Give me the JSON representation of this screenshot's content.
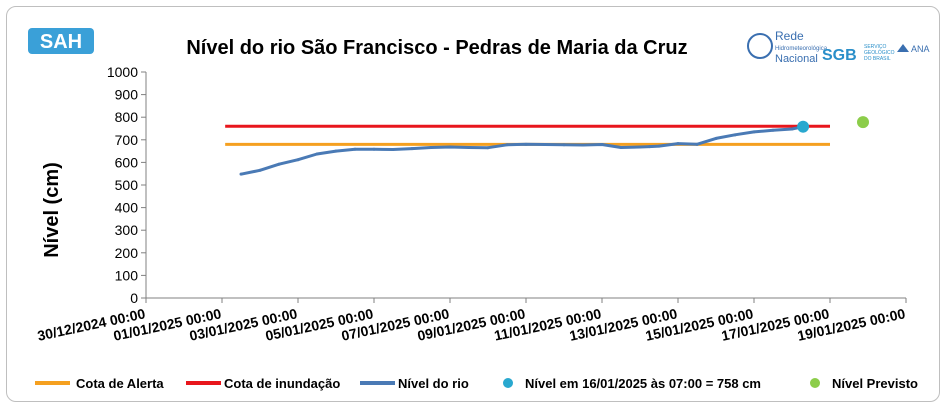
{
  "logos": {
    "left_logo_text": "SAH",
    "rede_title": "Rede",
    "rede_subtitle": "Hidrometeorológica",
    "rede_subtitle2": "Nacional",
    "sgb_text": "SGB",
    "sgb_sub1": "SERVIÇO",
    "sgb_sub2": "GEOLÓGICO",
    "sgb_sub3": "DO BRASIL",
    "ana_text": "ANA"
  },
  "colors": {
    "alerta": "#f5a020",
    "inundacao": "#e8161c",
    "nivel_rio": "#4a7ab5",
    "nivel_atual": "#29a8cf",
    "nivel_previsto": "#8ccd4a",
    "axis": "#808080"
  },
  "chart_data": {
    "type": "line",
    "title": "Nível do rio São Francisco - Pedras de Maria da Cruz",
    "ylabel": "Nível (cm)",
    "xlabel": "",
    "ylim": [
      0,
      1000
    ],
    "yticks": [
      0,
      100,
      200,
      300,
      400,
      500,
      600,
      700,
      800,
      900,
      1000
    ],
    "xlim": [
      "2024-12-30T00:00",
      "2025-01-19T00:00"
    ],
    "xtick_labels": [
      "30/12/2024 00:00",
      "01/01/2025 00:00",
      "03/01/2025 00:00",
      "05/01/2025 00:00",
      "07/01/2025 00:00",
      "09/01/2025 00:00",
      "11/01/2025 00:00",
      "13/01/2025 00:00",
      "15/01/2025 00:00",
      "17/01/2025 00:00",
      "19/01/2025 00:00"
    ],
    "grid": false,
    "legend_position": "bottom",
    "cota_alerta": {
      "name": "Cota de Alerta",
      "value": 680,
      "x_start": "2025-01-01T02:00",
      "x_end": "2025-01-17T00:00"
    },
    "cota_inundacao": {
      "name": "Cota de inundação",
      "value": 760,
      "x_start": "2025-01-01T02:00",
      "x_end": "2025-01-17T00:00"
    },
    "series": [
      {
        "name": "Nível do rio",
        "x": [
          "2025-01-01T12:00",
          "2025-01-02T00:00",
          "2025-01-02T12:00",
          "2025-01-03T00:00",
          "2025-01-03T12:00",
          "2025-01-04T00:00",
          "2025-01-04T12:00",
          "2025-01-05T00:00",
          "2025-01-05T12:00",
          "2025-01-06T00:00",
          "2025-01-06T12:00",
          "2025-01-07T00:00",
          "2025-01-07T12:00",
          "2025-01-08T00:00",
          "2025-01-08T12:00",
          "2025-01-09T00:00",
          "2025-01-09T12:00",
          "2025-01-10T00:00",
          "2025-01-10T12:00",
          "2025-01-11T00:00",
          "2025-01-11T12:00",
          "2025-01-12T00:00",
          "2025-01-12T06:00",
          "2025-01-12T12:00",
          "2025-01-13T00:00",
          "2025-01-13T12:00",
          "2025-01-14T00:00",
          "2025-01-14T12:00",
          "2025-01-15T00:00",
          "2025-01-15T12:00",
          "2025-01-16T00:00",
          "2025-01-16T07:00"
        ],
        "values": [
          548,
          565,
          592,
          612,
          637,
          650,
          658,
          658,
          657,
          661,
          666,
          668,
          666,
          665,
          678,
          680,
          679,
          678,
          677,
          679,
          666,
          668,
          670,
          672,
          683,
          680,
          706,
          722,
          735,
          742,
          748,
          758
        ]
      }
    ],
    "nivel_atual": {
      "name": "Nível em 16/01/2025 às 07:00 = 758 cm",
      "x": "2025-01-16T07:00",
      "value": 758
    },
    "nivel_previsto": {
      "name": "Nível Previsto",
      "x": "2025-01-17T00:00",
      "value": 778
    }
  }
}
